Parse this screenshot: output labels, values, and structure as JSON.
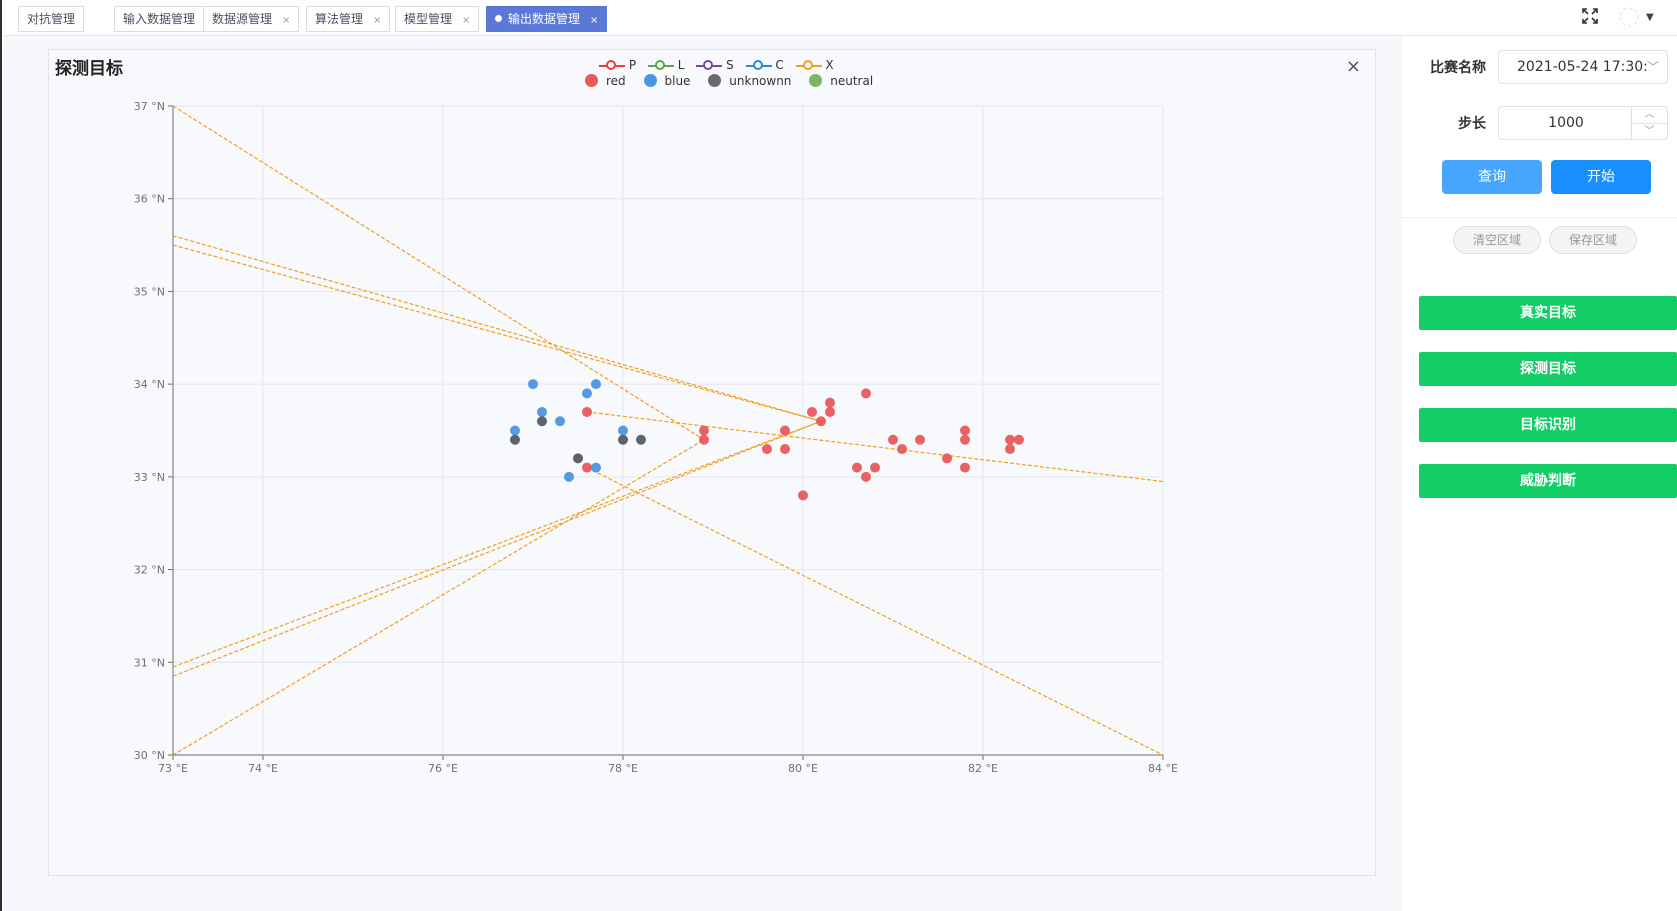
{
  "tabs": [
    {
      "label": "对抗管理",
      "closable": false,
      "active": false
    },
    {
      "label": "输入数据管理",
      "closable": true,
      "active": false
    },
    {
      "label": "数据源管理",
      "closable": true,
      "active": false
    },
    {
      "label": "算法管理",
      "closable": true,
      "active": false
    },
    {
      "label": "模型管理",
      "closable": true,
      "active": false
    },
    {
      "label": "输出数据管理",
      "closable": true,
      "active": true
    }
  ],
  "toolbar": {
    "fullscreen_icon": "fullscreen-icon",
    "avatar_icon": "avatar-icon",
    "dropdown_icon": "caret-down-icon"
  },
  "panel": {
    "title": "探测目标",
    "close_glyph": "×"
  },
  "legend": {
    "lines": [
      {
        "name": "P",
        "color": "#ee3b3b"
      },
      {
        "name": "L",
        "color": "#5aa845"
      },
      {
        "name": "S",
        "color": "#7a4aa0"
      },
      {
        "name": "C",
        "color": "#2f86e0"
      },
      {
        "name": "X",
        "color": "#f0a020"
      }
    ],
    "dots": [
      {
        "name": "red",
        "color": "#e8595a"
      },
      {
        "name": "blue",
        "color": "#4a96e2"
      },
      {
        "name": "unknownn",
        "color": "#6b6b6b"
      },
      {
        "name": "neutral",
        "color": "#7cb46a"
      }
    ]
  },
  "chart_data": {
    "type": "scatter",
    "x_ticks": [
      "73 °E",
      "74 °E",
      "76 °E",
      "78 °E",
      "80 °E",
      "82 °E",
      "84 °E"
    ],
    "y_ticks": [
      "37 °N",
      "36 °N",
      "35 °N",
      "34 °N",
      "33 °N",
      "32 °N",
      "31 °N",
      "30 °N"
    ],
    "x_tick_values": [
      73,
      74,
      76,
      78,
      80,
      82,
      84
    ],
    "y_tick_values": [
      37,
      36,
      35,
      34,
      33,
      32,
      31,
      30
    ],
    "xlim": [
      73,
      84
    ],
    "ylim": [
      30,
      37
    ],
    "grid": true,
    "legend_position": "top-center",
    "series": [
      {
        "name": "red",
        "color": "#e8595a",
        "points": [
          [
            77.6,
            33.7
          ],
          [
            77.6,
            33.1
          ],
          [
            78.9,
            33.5
          ],
          [
            78.9,
            33.4
          ],
          [
            79.6,
            33.3
          ],
          [
            79.8,
            33.5
          ],
          [
            79.8,
            33.3
          ],
          [
            80.0,
            32.8
          ],
          [
            80.1,
            33.7
          ],
          [
            80.2,
            33.6
          ],
          [
            80.3,
            33.8
          ],
          [
            80.3,
            33.7
          ],
          [
            80.6,
            33.1
          ],
          [
            80.7,
            33.9
          ],
          [
            80.7,
            33.0
          ],
          [
            80.8,
            33.1
          ],
          [
            81.0,
            33.4
          ],
          [
            81.1,
            33.3
          ],
          [
            81.3,
            33.4
          ],
          [
            81.6,
            33.2
          ],
          [
            81.8,
            33.5
          ],
          [
            81.8,
            33.4
          ],
          [
            81.8,
            33.1
          ],
          [
            82.3,
            33.4
          ],
          [
            82.3,
            33.3
          ],
          [
            82.4,
            33.4
          ]
        ]
      },
      {
        "name": "blue",
        "color": "#4a96e2",
        "points": [
          [
            76.8,
            33.5
          ],
          [
            77.0,
            34.0
          ],
          [
            77.1,
            33.7
          ],
          [
            77.3,
            33.6
          ],
          [
            77.4,
            33.0
          ],
          [
            77.6,
            33.9
          ],
          [
            77.7,
            34.0
          ],
          [
            77.7,
            33.1
          ],
          [
            78.0,
            33.5
          ]
        ]
      },
      {
        "name": "unknownn",
        "color": "#555a63",
        "points": [
          [
            76.8,
            33.4
          ],
          [
            77.1,
            33.6
          ],
          [
            77.5,
            33.2
          ],
          [
            78.0,
            33.4
          ],
          [
            78.2,
            33.4
          ]
        ]
      }
    ],
    "lines": [
      {
        "name": "X",
        "color": "#f0a020",
        "from": [
          73.0,
          37.0
        ],
        "to": [
          78.9,
          33.4
        ]
      },
      {
        "name": "X",
        "color": "#f0a020",
        "from": [
          73.0,
          35.6
        ],
        "to": [
          80.2,
          33.6
        ]
      },
      {
        "name": "X",
        "color": "#f0a020",
        "from": [
          73.0,
          35.5
        ],
        "to": [
          80.2,
          33.6
        ]
      },
      {
        "name": "X",
        "color": "#f0a020",
        "from": [
          73.0,
          30.0
        ],
        "to": [
          78.9,
          33.4
        ]
      },
      {
        "name": "X",
        "color": "#f0a020",
        "from": [
          73.0,
          30.95
        ],
        "to": [
          80.2,
          33.6
        ]
      },
      {
        "name": "X",
        "color": "#f0a020",
        "from": [
          73.0,
          30.85
        ],
        "to": [
          80.2,
          33.6
        ]
      },
      {
        "name": "X",
        "color": "#f0a020",
        "from": [
          77.6,
          33.7
        ],
        "to": [
          84.0,
          32.95
        ]
      },
      {
        "name": "X",
        "color": "#f0a020",
        "from": [
          77.6,
          33.1
        ],
        "to": [
          84.0,
          30.0
        ]
      }
    ]
  },
  "sidebar": {
    "match_label": "比赛名称",
    "match_value": "2021-05-24 17:30:",
    "step_label": "步长",
    "step_value": "1000",
    "query_button": "查询",
    "start_button": "开始",
    "clear_area_button": "清空区域",
    "save_area_button": "保存区域",
    "nav_buttons": [
      "真实目标",
      "探测目标",
      "目标识别",
      "威胁判断"
    ],
    "colors": {
      "query": "#46a6ff",
      "start": "#1890ff",
      "green": "#13ce66"
    }
  }
}
